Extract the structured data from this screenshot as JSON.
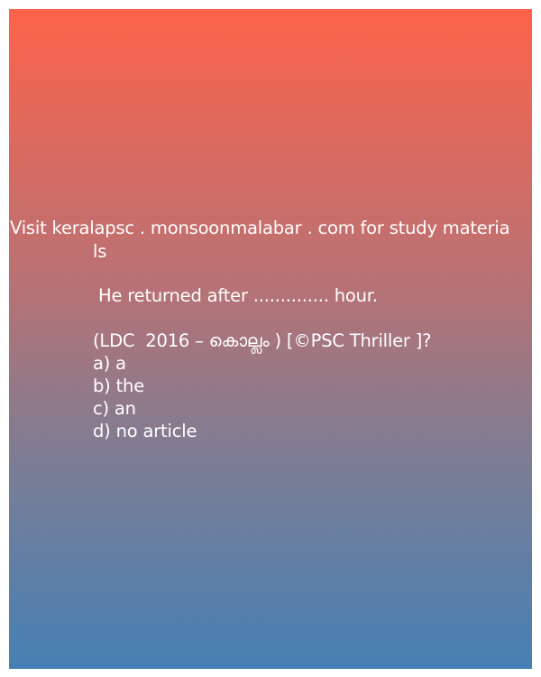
{
  "promo": {
    "line1": "Visit keralapsc . monsoonmalabar . com for study materia",
    "line2": "ls"
  },
  "question": {
    "text": " He returned after .............. hour.",
    "source": "(LDC  2016 – കൊല്ലം ) [©PSC Thriller ]?"
  },
  "options": [
    "a) a",
    "b) the",
    "c) an",
    "d) no article"
  ],
  "colors": {
    "gradient_top": "#fd634a",
    "gradient_bottom": "#4680b4",
    "text": "#ffffff"
  }
}
